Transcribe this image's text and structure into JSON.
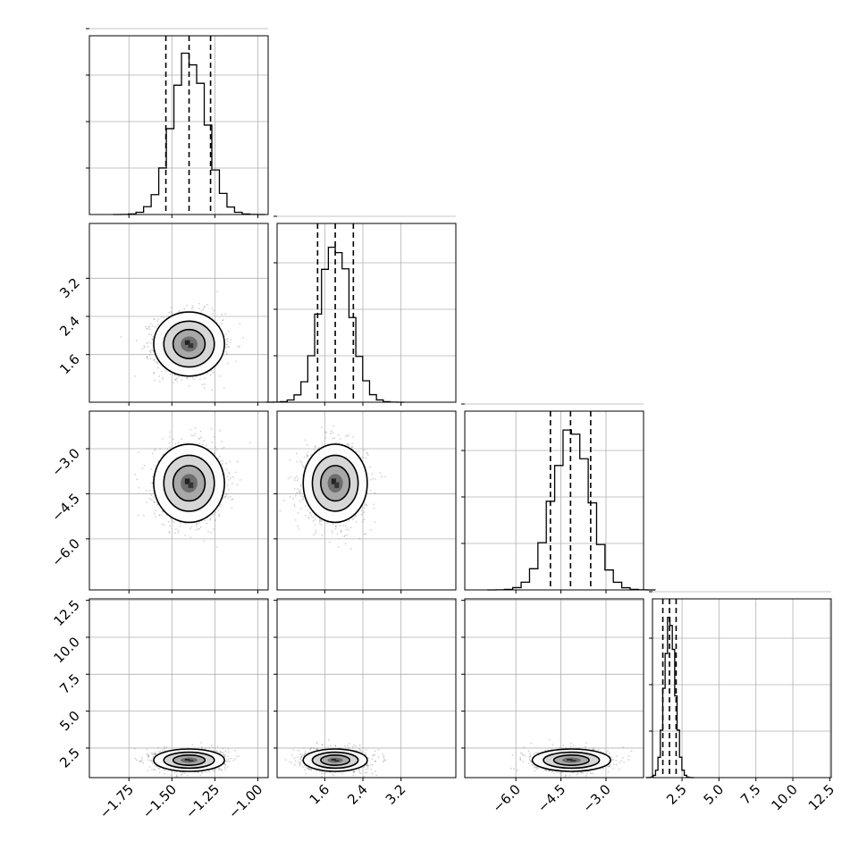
{
  "chart_data": {
    "type": "corner",
    "params": [
      {
        "range": [
          -1.98,
          -0.94
        ],
        "ticks": [
          -1.75,
          -1.5,
          -1.25,
          -1.0
        ],
        "tick_labels": [
          "−1.75",
          "−1.50",
          "−1.25",
          "−1.00"
        ],
        "quantiles": [
          -1.535,
          -1.4,
          -1.275
        ],
        "hist_center": -1.4,
        "hist_sd": 0.098
      },
      {
        "range": [
          0.6,
          4.35
        ],
        "ticks": [
          1.6,
          2.4,
          3.2
        ],
        "tick_labels": [
          "1.6",
          "2.4",
          "3.2"
        ],
        "quantiles": [
          1.45,
          1.82,
          2.2
        ],
        "hist_center": 1.82,
        "hist_sd": 0.32
      },
      {
        "range": [
          -7.7,
          -1.75
        ],
        "ticks": [
          -6.0,
          -4.5,
          -3.0
        ],
        "tick_labels": [
          "−6.0",
          "−4.5",
          "−3.0"
        ],
        "quantiles": [
          -4.85,
          -4.18,
          -3.51
        ],
        "hist_center": -4.15,
        "hist_sd": 0.62
      },
      {
        "range": [
          0.5,
          12.6
        ],
        "ticks": [
          2.5,
          5.0,
          7.5,
          10.0,
          12.5
        ],
        "tick_labels": [
          "2.5",
          "5.0",
          "7.5",
          "10.0",
          "12.5"
        ],
        "quantiles": [
          1.2,
          1.65,
          2.1
        ],
        "hist_center": 1.68,
        "hist_sd": 0.36
      }
    ],
    "hist_bins": 20,
    "points_per_panel": 1500,
    "grid": true,
    "quantile_line_style": "dashed",
    "contour_levels": 3,
    "colors": {
      "axes": "#000000",
      "grid": "#b0b0b0",
      "points": "#7f7f7f",
      "hist": "#000000"
    }
  }
}
